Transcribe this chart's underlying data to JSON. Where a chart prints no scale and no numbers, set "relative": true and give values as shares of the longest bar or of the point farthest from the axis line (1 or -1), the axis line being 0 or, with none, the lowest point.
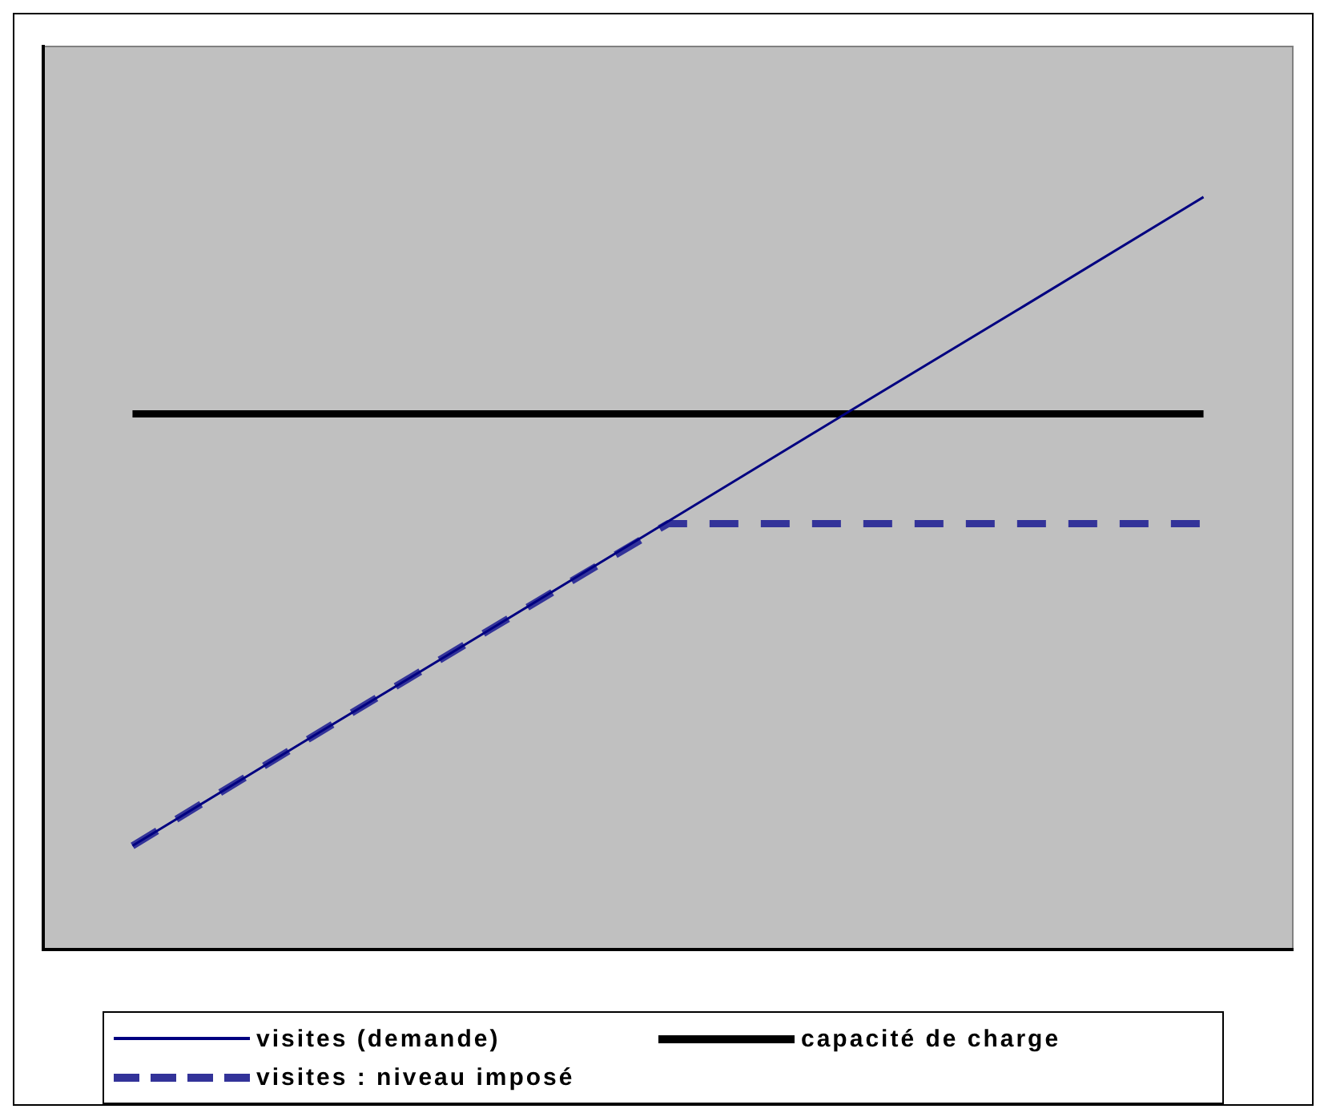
{
  "chart_data": {
    "type": "line",
    "relative": true,
    "categories": [
      null,
      null,
      null,
      null,
      null,
      null,
      null
    ],
    "series": [
      {
        "name": "visites (demande)",
        "color": "#000080",
        "line_style": "solid",
        "values": [
          0.138,
          0.282,
          0.425,
          0.569,
          0.713,
          0.856,
          1.0
        ]
      },
      {
        "name": "capacité de charge",
        "color": "#000000",
        "line_style": "solid",
        "values": [
          0.712,
          0.712,
          0.712,
          0.712,
          0.712,
          0.712,
          0.712
        ]
      },
      {
        "name": "visites : niveau imposé",
        "color": "#333399",
        "line_style": "dashed",
        "values": [
          0.138,
          0.282,
          0.425,
          0.566,
          0.566,
          0.566,
          0.566
        ]
      }
    ],
    "legend": "bottom",
    "grid": false,
    "marker": "none"
  }
}
